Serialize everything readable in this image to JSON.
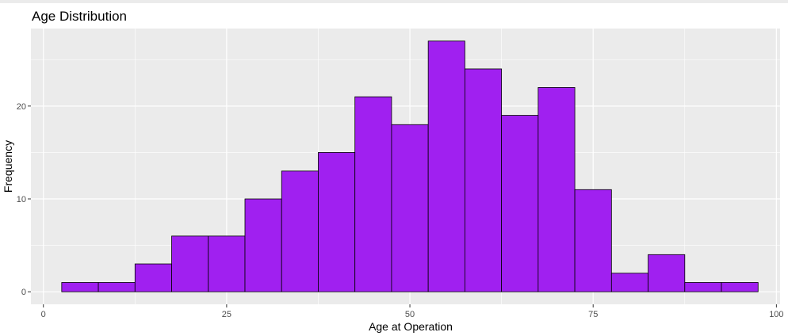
{
  "chart_data": {
    "type": "bar",
    "title": "Age Distribution",
    "xlabel": "Age at Operation",
    "ylabel": "Frequency",
    "xlim": [
      -1.7,
      100.5
    ],
    "ylim": [
      -1.35,
      28.35
    ],
    "x_ticks": [
      0,
      25,
      50,
      75,
      100
    ],
    "y_ticks": [
      0,
      10,
      20
    ],
    "bin_width": 5,
    "bins": [
      {
        "start": 2.5,
        "end": 7.5,
        "count": 1
      },
      {
        "start": 7.5,
        "end": 12.5,
        "count": 1
      },
      {
        "start": 12.5,
        "end": 17.5,
        "count": 3
      },
      {
        "start": 17.5,
        "end": 22.5,
        "count": 6
      },
      {
        "start": 22.5,
        "end": 27.5,
        "count": 6
      },
      {
        "start": 27.5,
        "end": 32.5,
        "count": 10
      },
      {
        "start": 32.5,
        "end": 37.5,
        "count": 13
      },
      {
        "start": 37.5,
        "end": 42.5,
        "count": 15
      },
      {
        "start": 42.5,
        "end": 47.5,
        "count": 21
      },
      {
        "start": 47.5,
        "end": 52.5,
        "count": 18
      },
      {
        "start": 52.5,
        "end": 57.5,
        "count": 27
      },
      {
        "start": 57.5,
        "end": 62.5,
        "count": 24
      },
      {
        "start": 62.5,
        "end": 67.5,
        "count": 19
      },
      {
        "start": 67.5,
        "end": 72.5,
        "count": 22
      },
      {
        "start": 72.5,
        "end": 77.5,
        "count": 11
      },
      {
        "start": 77.5,
        "end": 82.5,
        "count": 2
      },
      {
        "start": 82.5,
        "end": 87.5,
        "count": 4
      },
      {
        "start": 87.5,
        "end": 92.5,
        "count": 1
      },
      {
        "start": 92.5,
        "end": 97.5,
        "count": 1
      }
    ],
    "grid": true,
    "legend": "none",
    "colors": {
      "bar_fill": "#a020f0",
      "bar_outline": "#000000",
      "panel_background": "#ebebeb",
      "gridline": "#ffffff"
    }
  }
}
